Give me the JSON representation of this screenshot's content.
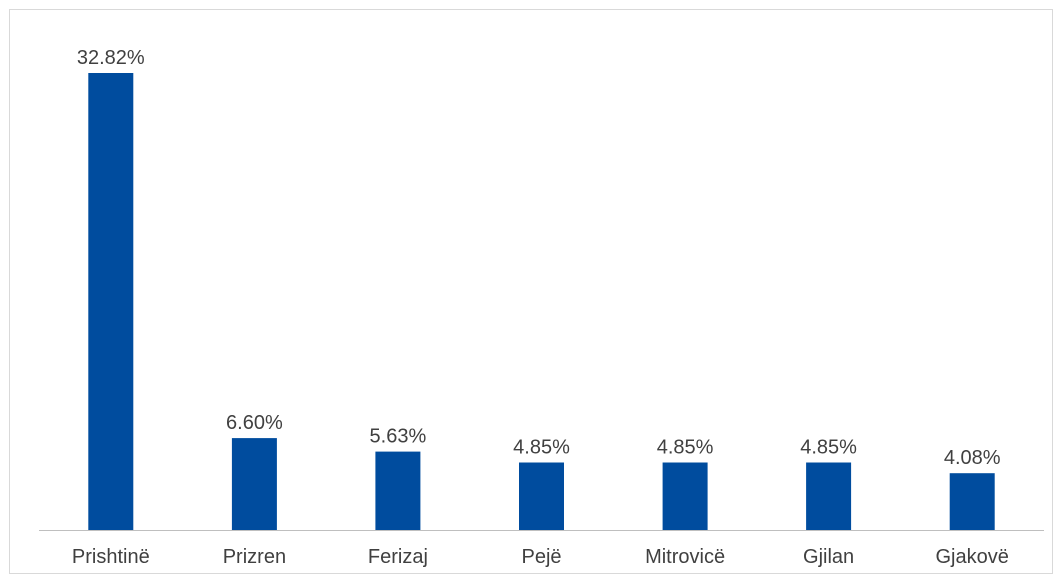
{
  "chart_data": {
    "type": "bar",
    "title": "",
    "xlabel": "",
    "ylabel": "",
    "categories": [
      "Prishtinë",
      "Prizren",
      "Ferizaj",
      "Pejë",
      "Mitrovicë",
      "Gjilan",
      "Gjakovë"
    ],
    "values": [
      32.82,
      6.6,
      5.63,
      4.85,
      4.85,
      4.85,
      4.08
    ],
    "value_labels": [
      "32.82%",
      "6.60%",
      "5.63%",
      "4.85%",
      "4.85%",
      "4.85%",
      "4.08%"
    ],
    "ylim": [
      0,
      33
    ],
    "grid": false,
    "legend": "none",
    "colors": {
      "bar": "#004C9E",
      "axis": "#bfbfbf",
      "text": "#404040",
      "border": "#d9d9d9"
    }
  }
}
